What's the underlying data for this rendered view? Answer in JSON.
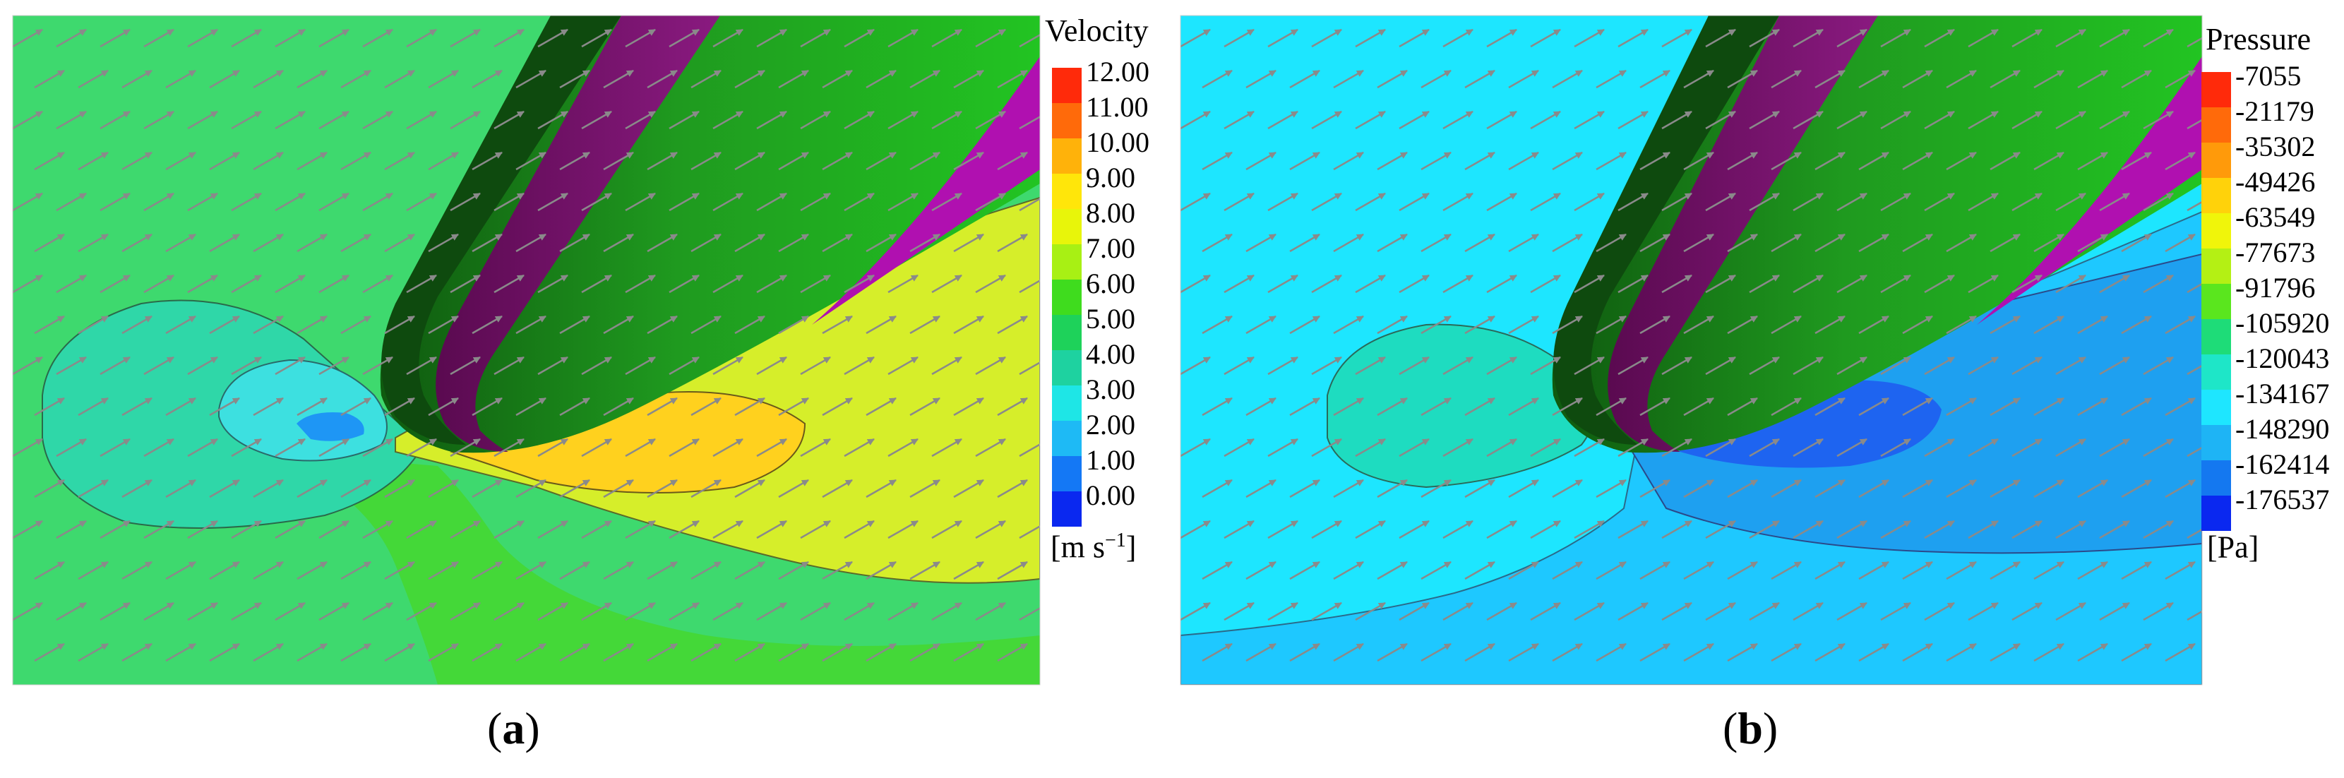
{
  "panels": [
    {
      "id": "a",
      "caption_open": "(",
      "caption_letter": "a",
      "caption_close": ")",
      "legend": {
        "title": "Velocity",
        "ticks": [
          "12.00",
          "11.00",
          "10.00",
          "9.00",
          "8.00",
          "7.00",
          "6.00",
          "5.00",
          "4.00",
          "3.00",
          "2.00",
          "1.00",
          "0.00"
        ],
        "colors": [
          "#ff2a0a",
          "#ff6a0a",
          "#ffb20a",
          "#ffe60a",
          "#e8f50a",
          "#a8f014",
          "#3fdc1e",
          "#1ed25a",
          "#1ed2a0",
          "#1ee6e6",
          "#1ebaf5",
          "#1478f5",
          "#0a28f0"
        ],
        "unit_main": "[m s",
        "unit_sup": "−1",
        "unit_end": "]"
      }
    },
    {
      "id": "b",
      "caption_open": "(",
      "caption_letter": "b",
      "caption_close": ")",
      "legend": {
        "title": "Pressure",
        "ticks": [
          "-7055",
          "-21179",
          "-35302",
          "-49426",
          "-63549",
          "-77673",
          "-91796",
          "-105920",
          "-120043",
          "-134167",
          "-148290",
          "-162414",
          "-176537"
        ],
        "colors": [
          "#ff2a0a",
          "#ff6a0a",
          "#ff9a0a",
          "#ffd20a",
          "#f0f50a",
          "#b4f014",
          "#5ae61e",
          "#1edc78",
          "#1ee6c8",
          "#1ee6ff",
          "#1eb4f5",
          "#1478f0",
          "#0a28f0"
        ],
        "unit_main": "[Pa]",
        "unit_sup": "",
        "unit_end": ""
      }
    }
  ]
}
